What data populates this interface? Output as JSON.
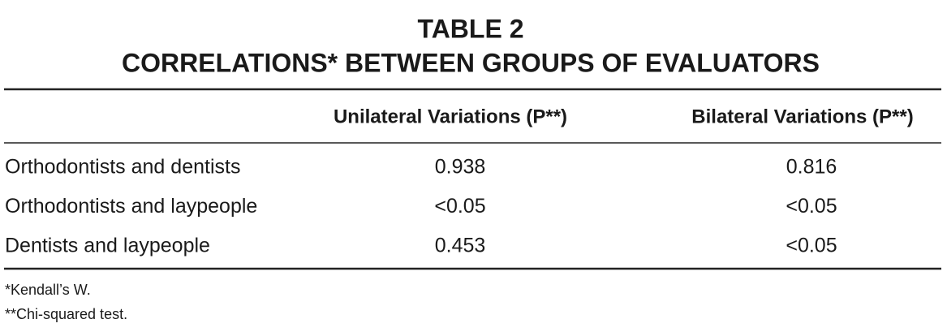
{
  "header": {
    "title": "TABLE 2",
    "subtitle": "CORRELATIONS* BETWEEN GROUPS OF EVALUATORS"
  },
  "table": {
    "columns": [
      "Unilateral Variations (P**)",
      "Bilateral Variations (P**)"
    ],
    "rows": [
      [
        "Orthodontists and dentists",
        "0.938",
        "0.816"
      ],
      [
        "Orthodontists and laypeople",
        "<0.05",
        "<0.05"
      ],
      [
        "Dentists and laypeople",
        "0.453",
        "<0.05"
      ]
    ]
  },
  "footnotes": [
    "*Kendall’s W.",
    "**Chi-squared test."
  ]
}
